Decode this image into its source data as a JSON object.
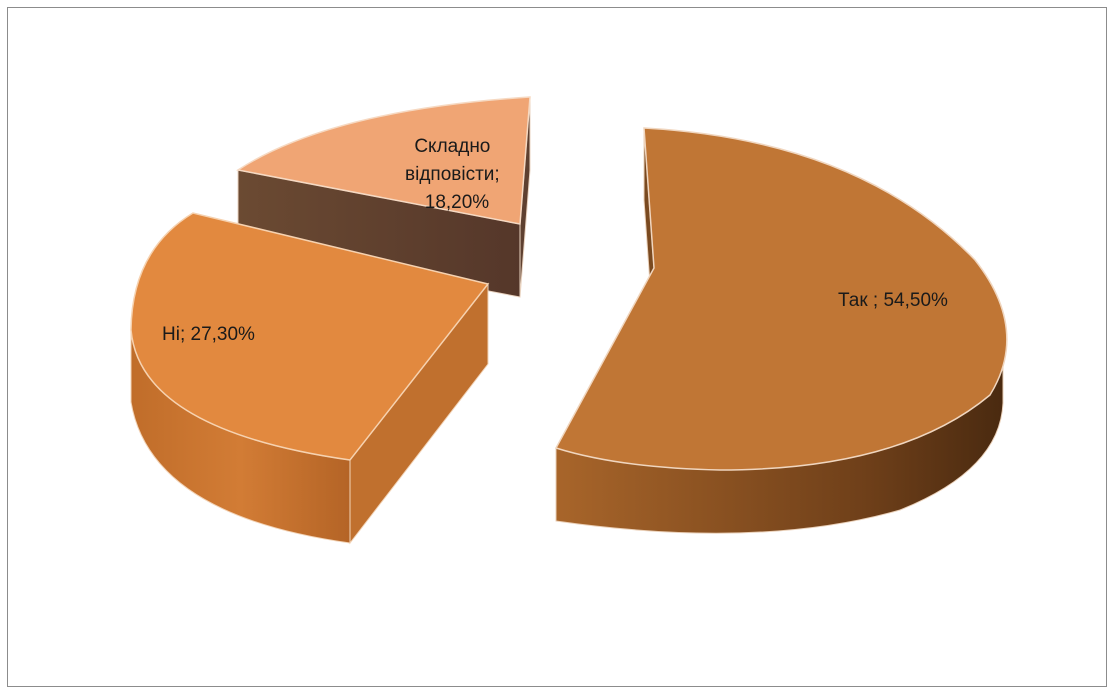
{
  "chart_data": {
    "type": "pie",
    "style": "3d-exploded",
    "title": "",
    "slices": [
      {
        "label": "Так ",
        "value": 54.5,
        "display": "Так ; 54,50%",
        "color": "#c07635"
      },
      {
        "label": "Ні",
        "value": 27.3,
        "display": "Ні; 27,30%",
        "color": "#e2893f"
      },
      {
        "label": "Складно відповісти",
        "value": 18.2,
        "display_lines": [
          "Складно",
          "відповісти;",
          "18,20%"
        ],
        "color": "#f0a574"
      }
    ],
    "legend": "none"
  }
}
